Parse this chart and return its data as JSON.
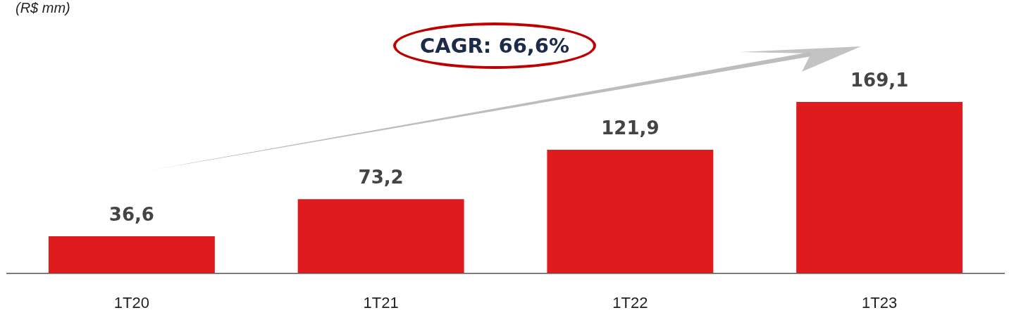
{
  "chart_data": {
    "type": "bar",
    "subtitle": "(R$ mm)",
    "categories": [
      "1T20",
      "1T21",
      "1T22",
      "1T23"
    ],
    "values": [
      36.6,
      73.2,
      121.9,
      169.1
    ],
    "color": "#e01b1e",
    "value_labels": [
      "36,6",
      "73,2",
      "121,9",
      "169,1"
    ],
    "annotations": [
      "CAGR: 66,6%"
    ],
    "grid": false,
    "legend": false
  }
}
